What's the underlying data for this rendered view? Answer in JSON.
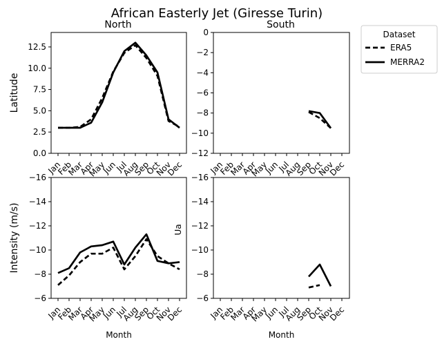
{
  "figure_title": "African Easterly Jet (Giresse Turin)",
  "legend": {
    "title": "Dataset",
    "entries": [
      {
        "label": "ERA5",
        "style": "dashed"
      },
      {
        "label": "MERRA2",
        "style": "solid"
      }
    ]
  },
  "colors": {
    "line": "#000000",
    "background": "#ffffff"
  },
  "chart_data": [
    {
      "type": "line",
      "title": "North",
      "xlabel": "",
      "ylabel": "Latitude",
      "categories": [
        "Jan",
        "Feb",
        "Mar",
        "Apr",
        "May",
        "Jun",
        "Jul",
        "Aug",
        "Sep",
        "Oct",
        "Nov",
        "Dec"
      ],
      "ylim": [
        0,
        14.2
      ],
      "yticks": [
        0,
        2.5,
        5,
        7.5,
        10,
        12.5
      ],
      "ytick_labels": [
        "0.0",
        "2.5",
        "5.0",
        "7.5",
        "10.0",
        "12.5"
      ],
      "y_inverted": false,
      "series": [
        {
          "name": "ERA5",
          "values": [
            3.0,
            3.0,
            3.1,
            4.0,
            6.5,
            9.6,
            11.8,
            12.7,
            11.2,
            9.1,
            3.8,
            3.1
          ]
        },
        {
          "name": "MERRA2",
          "values": [
            3.0,
            3.0,
            3.0,
            3.6,
            6.0,
            9.5,
            12.0,
            13.0,
            11.5,
            9.5,
            4.0,
            3.0
          ]
        }
      ]
    },
    {
      "type": "line",
      "title": "South",
      "xlabel": "",
      "ylabel": "",
      "categories": [
        "Jan",
        "Feb",
        "Mar",
        "Apr",
        "May",
        "Jun",
        "Jul",
        "Aug",
        "Sep",
        "Oct",
        "Nov",
        "Dec"
      ],
      "ylim": [
        -12,
        0
      ],
      "yticks": [
        0,
        -2,
        -4,
        -6,
        -8,
        -10,
        -12
      ],
      "ytick_labels": [
        "0",
        "−2",
        "−4",
        "−6",
        "−8",
        "−10",
        "−12"
      ],
      "y_inverted": false,
      "series": [
        {
          "name": "ERA5",
          "values": [
            null,
            null,
            null,
            null,
            null,
            null,
            null,
            null,
            -7.9,
            -8.5,
            -9.5,
            null
          ]
        },
        {
          "name": "MERRA2",
          "values": [
            null,
            null,
            null,
            null,
            null,
            null,
            null,
            null,
            -7.8,
            -8.0,
            -9.5,
            null
          ]
        }
      ]
    },
    {
      "type": "line",
      "title": "",
      "xlabel": "Month",
      "ylabel": "Intensity (m/s)",
      "categories": [
        "Jan",
        "Feb",
        "Mar",
        "Apr",
        "May",
        "Jun",
        "Jul",
        "Aug",
        "Sep",
        "Oct",
        "Nov",
        "Dec"
      ],
      "ylim": [
        -16,
        -6
      ],
      "yticks": [
        -16,
        -14,
        -12,
        -10,
        -8,
        -6
      ],
      "ytick_labels": [
        "−16",
        "−14",
        "−12",
        "−10",
        "−8",
        "−6"
      ],
      "y_inverted": true,
      "series": [
        {
          "name": "ERA5",
          "values": [
            -7.1,
            -7.9,
            -9.0,
            -9.7,
            -9.7,
            -10.2,
            -8.4,
            -9.5,
            -10.9,
            -9.5,
            -8.9,
            -8.4
          ]
        },
        {
          "name": "MERRA2",
          "values": [
            -8.1,
            -8.5,
            -9.8,
            -10.3,
            -10.4,
            -10.7,
            -8.8,
            -10.2,
            -11.3,
            -9.1,
            -8.9,
            -9.0
          ]
        }
      ]
    },
    {
      "type": "line",
      "title": "",
      "xlabel": "Month",
      "ylabel": "Ua",
      "categories": [
        "Jan",
        "Feb",
        "Mar",
        "Apr",
        "May",
        "Jun",
        "Jul",
        "Aug",
        "Sep",
        "Oct",
        "Nov",
        "Dec"
      ],
      "ylim": [
        -16,
        -6
      ],
      "yticks": [
        -16,
        -14,
        -12,
        -10,
        -8,
        -6
      ],
      "ytick_labels": [
        "−16",
        "−14",
        "−12",
        "−10",
        "−8",
        "−6"
      ],
      "y_inverted": true,
      "series": [
        {
          "name": "ERA5",
          "values": [
            null,
            null,
            null,
            null,
            null,
            null,
            null,
            null,
            -6.9,
            -7.1,
            null,
            null
          ]
        },
        {
          "name": "MERRA2",
          "values": [
            null,
            null,
            null,
            null,
            null,
            null,
            null,
            null,
            -7.8,
            -8.8,
            -7.0,
            null
          ]
        }
      ]
    }
  ]
}
